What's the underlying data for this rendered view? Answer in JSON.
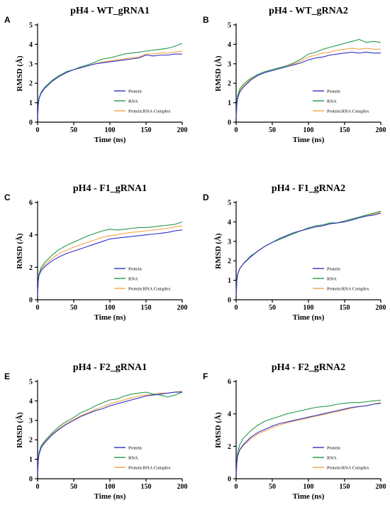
{
  "figure": {
    "colors": {
      "Protein": "#2f31c8",
      "RNA": "#239a4a",
      "Protein:RNA Complex": "#f2a34a"
    }
  },
  "chart_data": [
    {
      "type": "line",
      "panel_label": "A",
      "title": "pH4 - WT_gRNA1",
      "xlabel": "Time (ns)",
      "ylabel": "RMSD (Å)",
      "xlim": [
        0,
        200
      ],
      "ylim": [
        0,
        5
      ],
      "xticks": [
        "0",
        "50",
        "100",
        "150",
        "200"
      ],
      "yticks": [
        "0",
        "1",
        "2",
        "3",
        "4",
        "5"
      ],
      "legend": "bottom-right",
      "grid": false,
      "x": [
        0,
        1,
        2,
        5,
        10,
        20,
        30,
        40,
        50,
        60,
        70,
        80,
        90,
        100,
        110,
        120,
        130,
        140,
        150,
        160,
        170,
        180,
        190,
        200
      ],
      "series": [
        {
          "name": "Protein",
          "values": [
            0.2,
            0.9,
            1.2,
            1.5,
            1.75,
            2.1,
            2.35,
            2.55,
            2.7,
            2.8,
            2.9,
            3.0,
            3.05,
            3.1,
            3.15,
            3.2,
            3.25,
            3.3,
            3.45,
            3.4,
            3.45,
            3.45,
            3.5,
            3.5
          ]
        },
        {
          "name": "RNA",
          "values": [
            0.2,
            0.9,
            1.25,
            1.55,
            1.8,
            2.15,
            2.4,
            2.6,
            2.7,
            2.85,
            2.95,
            3.1,
            3.25,
            3.3,
            3.4,
            3.5,
            3.55,
            3.6,
            3.65,
            3.7,
            3.75,
            3.8,
            3.9,
            4.05
          ]
        },
        {
          "name": "Protein:RNA Complex",
          "values": [
            0.2,
            0.9,
            1.2,
            1.5,
            1.75,
            2.1,
            2.35,
            2.55,
            2.7,
            2.8,
            2.9,
            3.0,
            3.1,
            3.15,
            3.2,
            3.25,
            3.3,
            3.35,
            3.5,
            3.5,
            3.55,
            3.55,
            3.6,
            3.65
          ]
        }
      ]
    },
    {
      "type": "line",
      "panel_label": "B",
      "title": "pH4 - WT_gRNA2",
      "xlabel": "Time (ns)",
      "ylabel": "RMSD (Å)",
      "xlim": [
        0,
        200
      ],
      "ylim": [
        0,
        5
      ],
      "xticks": [
        "0",
        "50",
        "100",
        "150",
        "200"
      ],
      "yticks": [
        "0",
        "1",
        "2",
        "3",
        "4",
        "5"
      ],
      "legend": "bottom-right",
      "grid": false,
      "x": [
        0,
        1,
        2,
        5,
        10,
        20,
        30,
        40,
        50,
        60,
        70,
        80,
        90,
        100,
        110,
        120,
        130,
        140,
        150,
        160,
        170,
        180,
        190,
        200
      ],
      "series": [
        {
          "name": "Protein",
          "values": [
            0.2,
            0.9,
            1.2,
            1.55,
            1.8,
            2.15,
            2.4,
            2.55,
            2.65,
            2.75,
            2.85,
            2.95,
            3.05,
            3.2,
            3.3,
            3.35,
            3.45,
            3.5,
            3.55,
            3.6,
            3.55,
            3.6,
            3.55,
            3.55
          ]
        },
        {
          "name": "RNA",
          "values": [
            0.2,
            1.0,
            1.35,
            1.7,
            1.95,
            2.25,
            2.45,
            2.6,
            2.7,
            2.8,
            2.9,
            3.05,
            3.25,
            3.5,
            3.6,
            3.75,
            3.85,
            3.95,
            4.05,
            4.15,
            4.25,
            4.1,
            4.15,
            4.1
          ]
        },
        {
          "name": "Protein:RNA Complex",
          "values": [
            0.2,
            0.95,
            1.25,
            1.6,
            1.85,
            2.2,
            2.45,
            2.6,
            2.7,
            2.8,
            2.9,
            3.0,
            3.15,
            3.35,
            3.45,
            3.55,
            3.6,
            3.7,
            3.75,
            3.8,
            3.75,
            3.8,
            3.75,
            3.75
          ]
        }
      ]
    },
    {
      "type": "line",
      "panel_label": "C",
      "title": "pH4 - F1_gRNA1",
      "xlabel": "Time (ns)",
      "ylabel": "RMSD (Å)",
      "xlim": [
        0,
        200
      ],
      "ylim": [
        0,
        6
      ],
      "xticks": [
        "0",
        "50",
        "100",
        "150",
        "200"
      ],
      "yticks": [
        "0",
        "2",
        "4",
        "6"
      ],
      "legend": "bottom-right",
      "grid": false,
      "x": [
        0,
        1,
        2,
        5,
        10,
        20,
        30,
        40,
        50,
        60,
        70,
        80,
        90,
        100,
        110,
        120,
        130,
        140,
        150,
        160,
        170,
        180,
        190,
        200
      ],
      "series": [
        {
          "name": "Protein",
          "values": [
            0.3,
            1.2,
            1.5,
            1.8,
            2.05,
            2.4,
            2.65,
            2.85,
            3.0,
            3.15,
            3.3,
            3.45,
            3.6,
            3.75,
            3.8,
            3.85,
            3.9,
            3.95,
            4.0,
            4.05,
            4.1,
            4.15,
            4.25,
            4.3
          ]
        },
        {
          "name": "RNA",
          "values": [
            0.3,
            1.25,
            1.6,
            2.0,
            2.3,
            2.75,
            3.1,
            3.35,
            3.55,
            3.75,
            3.95,
            4.1,
            4.25,
            4.35,
            4.3,
            4.35,
            4.4,
            4.45,
            4.45,
            4.5,
            4.55,
            4.6,
            4.65,
            4.8
          ]
        },
        {
          "name": "Protein:RNA Complex",
          "values": [
            0.3,
            1.2,
            1.55,
            1.9,
            2.15,
            2.55,
            2.85,
            3.05,
            3.25,
            3.4,
            3.55,
            3.7,
            3.85,
            3.95,
            4.0,
            4.1,
            4.15,
            4.2,
            4.25,
            4.3,
            4.35,
            4.4,
            4.5,
            4.55
          ]
        }
      ]
    },
    {
      "type": "line",
      "panel_label": "D",
      "title": "pH4 - F1_gRNA2",
      "xlabel": "Time (ns)",
      "ylabel": "RMSD (Å)",
      "xlim": [
        0,
        200
      ],
      "ylim": [
        0,
        5
      ],
      "xticks": [
        "0",
        "50",
        "100",
        "150",
        "200"
      ],
      "yticks": [
        "0",
        "1",
        "2",
        "3",
        "4",
        "5"
      ],
      "legend": "bottom-right",
      "grid": false,
      "x": [
        0,
        1,
        2,
        5,
        10,
        20,
        30,
        40,
        50,
        60,
        70,
        80,
        90,
        100,
        110,
        120,
        130,
        140,
        150,
        160,
        170,
        180,
        190,
        200
      ],
      "series": [
        {
          "name": "Protein",
          "values": [
            0.2,
            1.0,
            1.3,
            1.6,
            1.85,
            2.2,
            2.5,
            2.75,
            2.95,
            3.15,
            3.3,
            3.45,
            3.55,
            3.65,
            3.75,
            3.8,
            3.9,
            3.95,
            4.0,
            4.1,
            4.2,
            4.3,
            4.35,
            4.45
          ]
        },
        {
          "name": "RNA",
          "values": [
            0.2,
            1.0,
            1.3,
            1.6,
            1.85,
            2.25,
            2.5,
            2.75,
            2.95,
            3.1,
            3.25,
            3.4,
            3.55,
            3.7,
            3.8,
            3.85,
            3.95,
            3.95,
            4.05,
            4.15,
            4.25,
            4.35,
            4.45,
            4.55
          ]
        },
        {
          "name": "Protein:RNA Complex",
          "values": [
            0.2,
            1.0,
            1.3,
            1.6,
            1.85,
            2.2,
            2.5,
            2.75,
            2.95,
            3.1,
            3.3,
            3.45,
            3.55,
            3.65,
            3.75,
            3.85,
            3.9,
            3.95,
            4.05,
            4.15,
            4.25,
            4.35,
            4.4,
            4.5
          ]
        }
      ]
    },
    {
      "type": "line",
      "panel_label": "E",
      "title": "pH4 - F2_gRNA1",
      "xlabel": "Time (ns)",
      "ylabel": "RMSD (Å)",
      "xlim": [
        0,
        200
      ],
      "ylim": [
        0,
        5
      ],
      "xticks": [
        "0",
        "50",
        "100",
        "150",
        "200"
      ],
      "yticks": [
        "0",
        "1",
        "2",
        "3",
        "4",
        "5"
      ],
      "legend": "bottom-right",
      "grid": false,
      "x": [
        0,
        1,
        2,
        5,
        10,
        20,
        30,
        40,
        50,
        60,
        70,
        80,
        90,
        100,
        110,
        120,
        130,
        140,
        150,
        160,
        170,
        180,
        190,
        200
      ],
      "series": [
        {
          "name": "Protein",
          "values": [
            0.2,
            0.95,
            1.25,
            1.6,
            1.85,
            2.25,
            2.55,
            2.8,
            3.0,
            3.2,
            3.35,
            3.5,
            3.6,
            3.75,
            3.85,
            3.95,
            4.05,
            4.15,
            4.25,
            4.3,
            4.35,
            4.4,
            4.45,
            4.45
          ]
        },
        {
          "name": "RNA",
          "values": [
            0.2,
            1.0,
            1.35,
            1.7,
            1.95,
            2.35,
            2.7,
            2.95,
            3.15,
            3.4,
            3.55,
            3.75,
            3.9,
            4.05,
            4.1,
            4.25,
            4.35,
            4.4,
            4.45,
            4.35,
            4.3,
            4.2,
            4.3,
            4.45
          ]
        },
        {
          "name": "Protein:RNA Complex",
          "values": [
            0.2,
            1.0,
            1.3,
            1.65,
            1.9,
            2.3,
            2.6,
            2.85,
            3.05,
            3.25,
            3.4,
            3.55,
            3.7,
            3.85,
            3.95,
            4.05,
            4.15,
            4.25,
            4.3,
            4.35,
            4.4,
            4.4,
            4.45,
            4.5
          ]
        }
      ]
    },
    {
      "type": "line",
      "panel_label": "F",
      "title": "pH4 - F2_gRNA2",
      "xlabel": "Time (ns)",
      "ylabel": "RMSD (Å)",
      "xlim": [
        0,
        200
      ],
      "ylim": [
        0,
        6
      ],
      "xticks": [
        "0",
        "50",
        "100",
        "150",
        "200"
      ],
      "yticks": [
        "0",
        "2",
        "4",
        "6"
      ],
      "legend": "bottom-right",
      "grid": false,
      "x": [
        0,
        1,
        2,
        5,
        10,
        20,
        30,
        40,
        50,
        60,
        70,
        80,
        90,
        100,
        110,
        120,
        130,
        140,
        150,
        160,
        170,
        180,
        190,
        200
      ],
      "series": [
        {
          "name": "Protein",
          "values": [
            0.2,
            1.0,
            1.4,
            1.8,
            2.1,
            2.55,
            2.85,
            3.05,
            3.25,
            3.4,
            3.5,
            3.6,
            3.7,
            3.8,
            3.9,
            4.0,
            4.1,
            4.2,
            4.3,
            4.4,
            4.45,
            4.5,
            4.6,
            4.65
          ]
        },
        {
          "name": "RNA",
          "values": [
            0.2,
            1.1,
            1.6,
            2.1,
            2.5,
            2.95,
            3.3,
            3.55,
            3.7,
            3.85,
            4.0,
            4.1,
            4.2,
            4.3,
            4.4,
            4.45,
            4.5,
            4.6,
            4.65,
            4.7,
            4.7,
            4.75,
            4.8,
            4.85
          ]
        },
        {
          "name": "Protein:RNA Complex",
          "values": [
            0.2,
            0.95,
            1.35,
            1.75,
            2.05,
            2.45,
            2.75,
            2.95,
            3.15,
            3.3,
            3.45,
            3.55,
            3.65,
            3.75,
            3.85,
            3.95,
            4.05,
            4.15,
            4.25,
            4.35,
            4.45,
            4.5,
            4.6,
            4.7
          ]
        }
      ]
    }
  ]
}
